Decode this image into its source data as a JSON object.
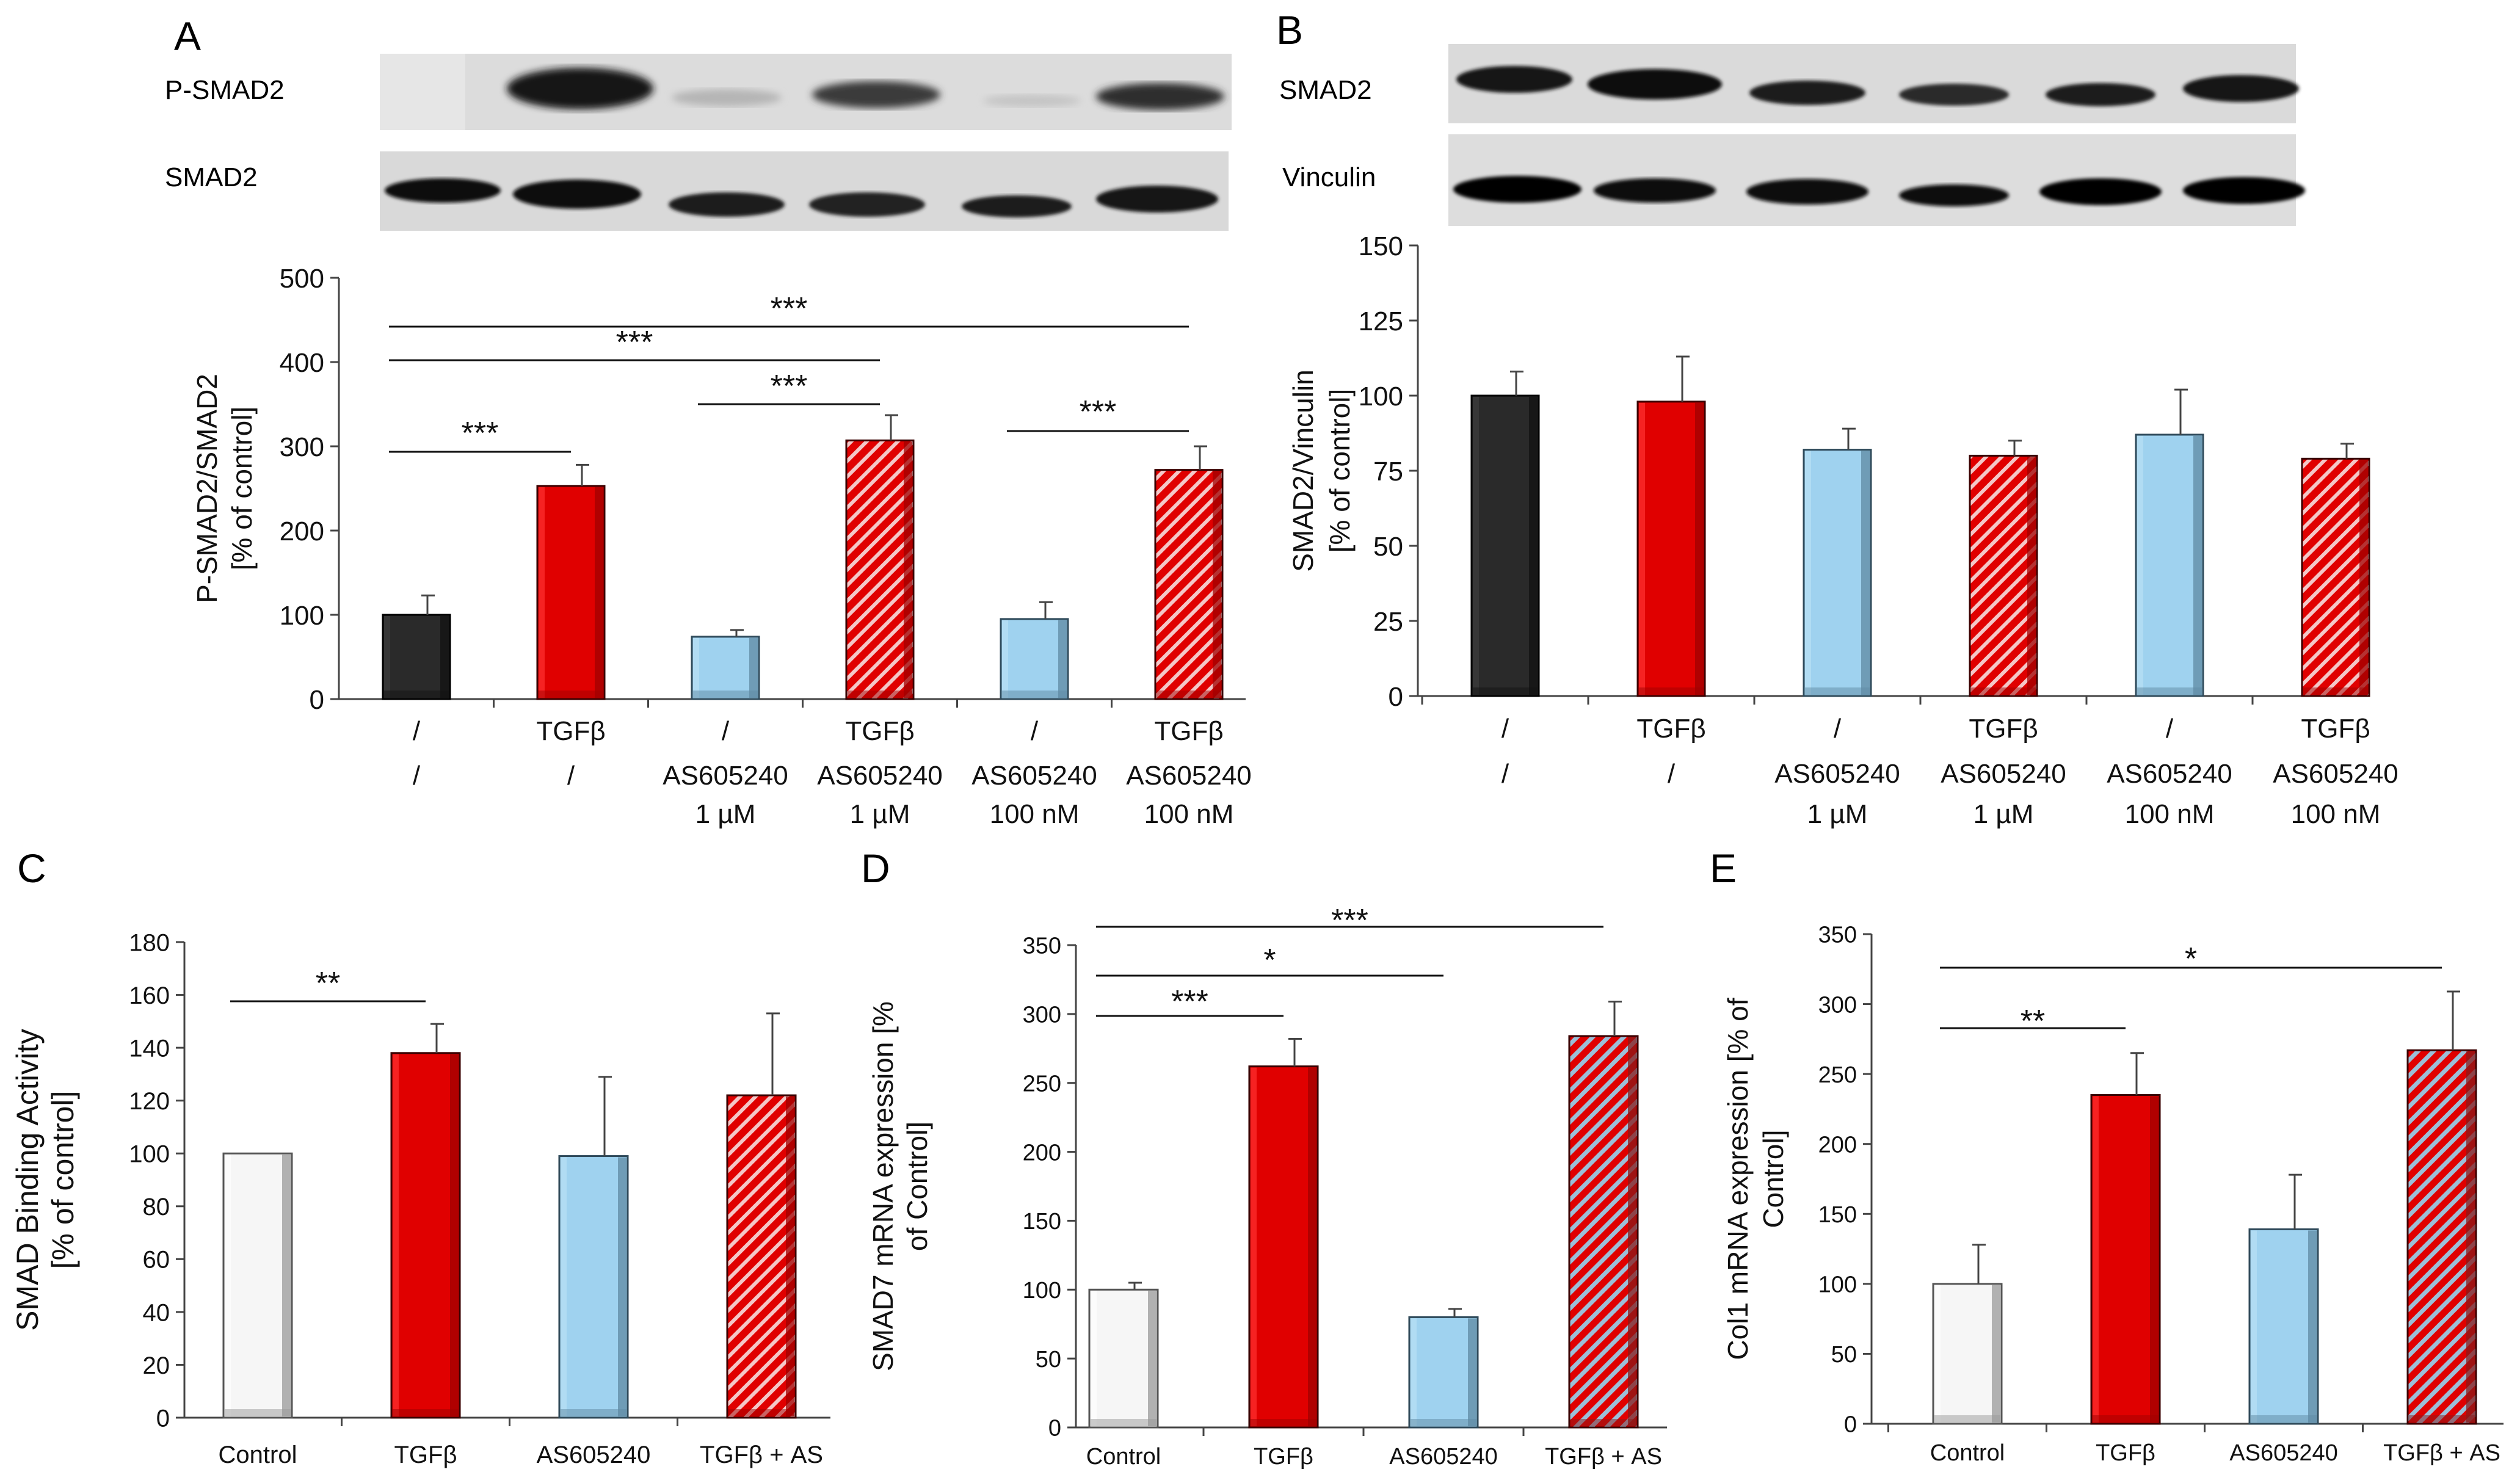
{
  "figure": {
    "panel_letters": [
      "A",
      "B",
      "C",
      "D",
      "E"
    ],
    "blots": {
      "A": [
        "P-SMAD2",
        "SMAD2"
      ],
      "B": [
        "SMAD2",
        "Vinculin"
      ]
    },
    "colors": {
      "control_black": "#2a2a2a",
      "tgf_red": "#e00000",
      "as_blue": "#9fd2ef",
      "white_bar": "#f4f4f4",
      "axis": "#444444",
      "text": "#111111"
    }
  },
  "chart_data": [
    {
      "panel": "A",
      "type": "bar",
      "ylabel": [
        "P-SMAD2/SMAD2",
        "[% of control]"
      ],
      "ylim": [
        0,
        500
      ],
      "yticks": [
        0,
        100,
        200,
        300,
        400,
        500
      ],
      "categories": [
        [
          "/",
          "/",
          ""
        ],
        [
          "TGFβ",
          "/",
          ""
        ],
        [
          "/",
          "AS605240",
          "1 µM"
        ],
        [
          "TGFβ",
          "AS605240",
          "1 µM"
        ],
        [
          "/",
          "AS605240",
          "100 nM"
        ],
        [
          "TGFβ",
          "AS605240",
          "100 nM"
        ]
      ],
      "values": [
        100,
        253,
        74,
        307,
        95,
        272
      ],
      "errors": [
        23,
        25,
        8,
        30,
        20,
        28
      ],
      "styles": [
        "black",
        "red",
        "blue",
        "hatch-red",
        "blue",
        "hatch-red"
      ],
      "significance": [
        {
          "from": 0,
          "to": 5,
          "label": "***"
        },
        {
          "from": 0,
          "to": 3,
          "label": "***"
        },
        {
          "from": 2,
          "to": 3,
          "label": "***"
        },
        {
          "from": 0,
          "to": 1,
          "label": "***"
        },
        {
          "from": 4,
          "to": 5,
          "label": "***"
        }
      ]
    },
    {
      "panel": "B",
      "type": "bar",
      "ylabel": [
        "SMAD2/Vinculin",
        "[% of control]"
      ],
      "ylim": [
        0,
        150
      ],
      "yticks": [
        0,
        25,
        50,
        75,
        100,
        125,
        150
      ],
      "categories": [
        [
          "/",
          "/",
          ""
        ],
        [
          "TGFβ",
          "/",
          ""
        ],
        [
          "/",
          "AS605240",
          "1 µM"
        ],
        [
          "TGFβ",
          "AS605240",
          "1 µM"
        ],
        [
          "/",
          "AS605240",
          "100 nM"
        ],
        [
          "TGFβ",
          "AS605240",
          "100 nM"
        ]
      ],
      "values": [
        100,
        98,
        82,
        80,
        87,
        79
      ],
      "errors": [
        8,
        15,
        7,
        5,
        15,
        5
      ],
      "styles": [
        "black",
        "red",
        "blue",
        "hatch-red",
        "blue",
        "hatch-red"
      ],
      "significance": []
    },
    {
      "panel": "C",
      "type": "bar",
      "ylabel": [
        "SMAD Binding Activity",
        "[% of control]"
      ],
      "ylim": [
        0,
        180
      ],
      "yticks": [
        0,
        20,
        40,
        60,
        80,
        100,
        120,
        140,
        160,
        180
      ],
      "categories": [
        [
          "Control"
        ],
        [
          "TGFβ"
        ],
        [
          "AS605240"
        ],
        [
          "TGFβ + AS"
        ]
      ],
      "values": [
        100,
        138,
        99,
        122
      ],
      "errors": [
        0,
        11,
        30,
        31
      ],
      "styles": [
        "white",
        "red",
        "blue",
        "hatch-red"
      ],
      "significance": [
        {
          "from": 0,
          "to": 1,
          "label": "**"
        }
      ]
    },
    {
      "panel": "D",
      "type": "bar",
      "ylabel": [
        "SMAD7 mRNA expression [%",
        "of Control]"
      ],
      "ylim": [
        0,
        350
      ],
      "yticks": [
        0,
        50,
        100,
        150,
        200,
        250,
        300,
        350
      ],
      "categories": [
        [
          "Control"
        ],
        [
          "TGFβ"
        ],
        [
          "AS605240"
        ],
        [
          "TGFβ + AS"
        ]
      ],
      "values": [
        100,
        262,
        80,
        284
      ],
      "errors": [
        5,
        20,
        6,
        25
      ],
      "styles": [
        "white",
        "red",
        "blue",
        "hatch-grey"
      ],
      "significance": [
        {
          "from": 0,
          "to": 3,
          "label": "***"
        },
        {
          "from": 0,
          "to": 2,
          "label": "*"
        },
        {
          "from": 0,
          "to": 1,
          "label": "***"
        }
      ]
    },
    {
      "panel": "E",
      "type": "bar",
      "ylabel": [
        "Col1 mRNA expression [% of",
        "Control]"
      ],
      "ylim": [
        0,
        350
      ],
      "yticks": [
        0,
        50,
        100,
        150,
        200,
        250,
        300,
        350
      ],
      "categories": [
        [
          "Control"
        ],
        [
          "TGFβ"
        ],
        [
          "AS605240"
        ],
        [
          "TGFβ + AS"
        ]
      ],
      "values": [
        100,
        235,
        139,
        267
      ],
      "errors": [
        28,
        30,
        39,
        42
      ],
      "styles": [
        "white",
        "red",
        "blue",
        "hatch-grey"
      ],
      "significance": [
        {
          "from": 0,
          "to": 3,
          "label": "*"
        },
        {
          "from": 0,
          "to": 1,
          "label": "**"
        }
      ]
    }
  ]
}
